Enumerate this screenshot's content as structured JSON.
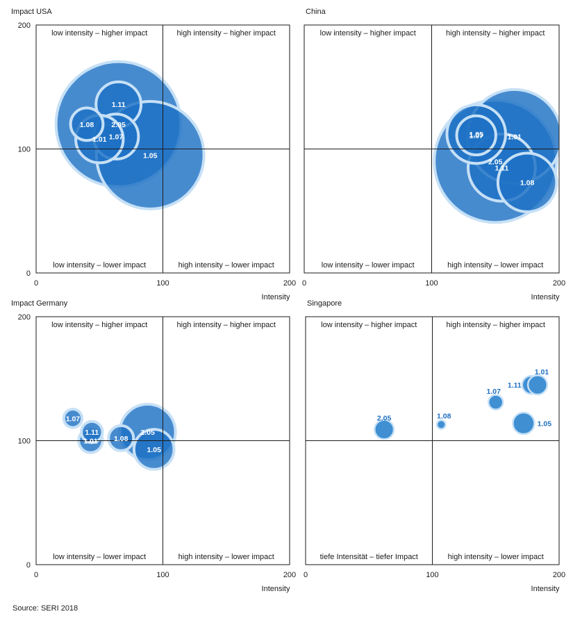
{
  "source": "Source: SERI 2018",
  "chart_data": [
    {
      "type": "bubble",
      "title": "USA",
      "ylabel": "Impact",
      "xlabel": "Intensity",
      "xlim": [
        0,
        200
      ],
      "ylim": [
        0,
        200
      ],
      "xticks": [
        "0",
        "100",
        "200"
      ],
      "yticks": [
        "0",
        "100",
        "200"
      ],
      "quadrant_labels": {
        "top_left": "low intensity – higher impact",
        "top_right": "high intensity – higher impact",
        "bottom_left": "low intensity – lower impact",
        "bottom_right": "high intensity – lower impact"
      },
      "points": [
        {
          "label": "2.05",
          "x": 65,
          "y": 120,
          "size": 1.0
        },
        {
          "label": "1.05",
          "x": 90,
          "y": 95,
          "size": 0.86
        },
        {
          "label": "1.11",
          "x": 65,
          "y": 136,
          "size": 0.36
        },
        {
          "label": "1.07",
          "x": 63,
          "y": 110,
          "size": 0.36
        },
        {
          "label": "1.01",
          "x": 50,
          "y": 108,
          "size": 0.38
        },
        {
          "label": "1.08",
          "x": 40,
          "y": 120,
          "size": 0.26
        }
      ]
    },
    {
      "type": "bubble",
      "title": "China",
      "ylabel": "",
      "xlabel": "Intensity",
      "xlim": [
        0,
        200
      ],
      "ylim": [
        0,
        200
      ],
      "xticks": [
        "0",
        "100",
        "200"
      ],
      "yticks": [],
      "quadrant_labels": {
        "top_left": "low intensity – higher impact",
        "top_right": "high intensity – higher impact",
        "bottom_left": "low intensity – lower impact",
        "bottom_right": "high intensity – lower impact"
      },
      "points": [
        {
          "label": "2.05",
          "x": 150,
          "y": 90,
          "size": 1.0
        },
        {
          "label": "1.01",
          "x": 165,
          "y": 110,
          "size": 0.77
        },
        {
          "label": "1.11",
          "x": 155,
          "y": 85,
          "size": 0.55
        },
        {
          "label": "1.05",
          "x": 135,
          "y": 112,
          "size": 0.48
        },
        {
          "label": "1.08",
          "x": 175,
          "y": 73,
          "size": 0.48
        },
        {
          "label": "1.07",
          "x": 135,
          "y": 111,
          "size": 0.32
        }
      ]
    },
    {
      "type": "bubble",
      "title": "Germany",
      "ylabel": "Impact",
      "xlabel": "Intensity",
      "xlim": [
        0,
        200
      ],
      "ylim": [
        0,
        200
      ],
      "xticks": [
        "0",
        "100",
        "200"
      ],
      "yticks": [
        "0",
        "100",
        "200"
      ],
      "quadrant_labels": {
        "top_left": "low intensity – higher impact",
        "top_right": "high intensity – higher impact",
        "bottom_left": "low intensity – lower impact",
        "bottom_right": "high intensity – lower impact"
      },
      "points": [
        {
          "label": "2.05",
          "x": 88,
          "y": 107,
          "size": 1.0
        },
        {
          "label": "1.05",
          "x": 93,
          "y": 93,
          "size": 0.72
        },
        {
          "label": "1.08",
          "x": 67,
          "y": 102,
          "size": 0.45
        },
        {
          "label": "1.01",
          "x": 43,
          "y": 100,
          "size": 0.43
        },
        {
          "label": "1.11",
          "x": 44,
          "y": 107,
          "size": 0.38
        },
        {
          "label": "1.07",
          "x": 29,
          "y": 118,
          "size": 0.33
        }
      ]
    },
    {
      "type": "bubble",
      "title": "Singapore",
      "ylabel": "",
      "xlabel": "Intensity",
      "xlim": [
        0,
        200
      ],
      "ylim": [
        0,
        200
      ],
      "xticks": [
        "0",
        "100",
        "200"
      ],
      "yticks": [],
      "quadrant_labels": {
        "top_left": "low intensity – higher impact",
        "top_right": "high intensity – higher impact",
        "bottom_left": "tiefe Intensität – tiefer Impact",
        "bottom_right": "high intensity – lower impact"
      },
      "points": [
        {
          "label": "2.05",
          "x": 62,
          "y": 109,
          "size": 0.33
        },
        {
          "label": "1.08",
          "x": 107,
          "y": 113,
          "size": 0.15
        },
        {
          "label": "1.07",
          "x": 150,
          "y": 131,
          "size": 0.25
        },
        {
          "label": "1.11",
          "x": 178,
          "y": 145,
          "size": 0.31
        },
        {
          "label": "1.01",
          "x": 183,
          "y": 145,
          "size": 0.33
        },
        {
          "label": "1.05",
          "x": 172,
          "y": 114,
          "size": 0.37
        }
      ]
    }
  ]
}
